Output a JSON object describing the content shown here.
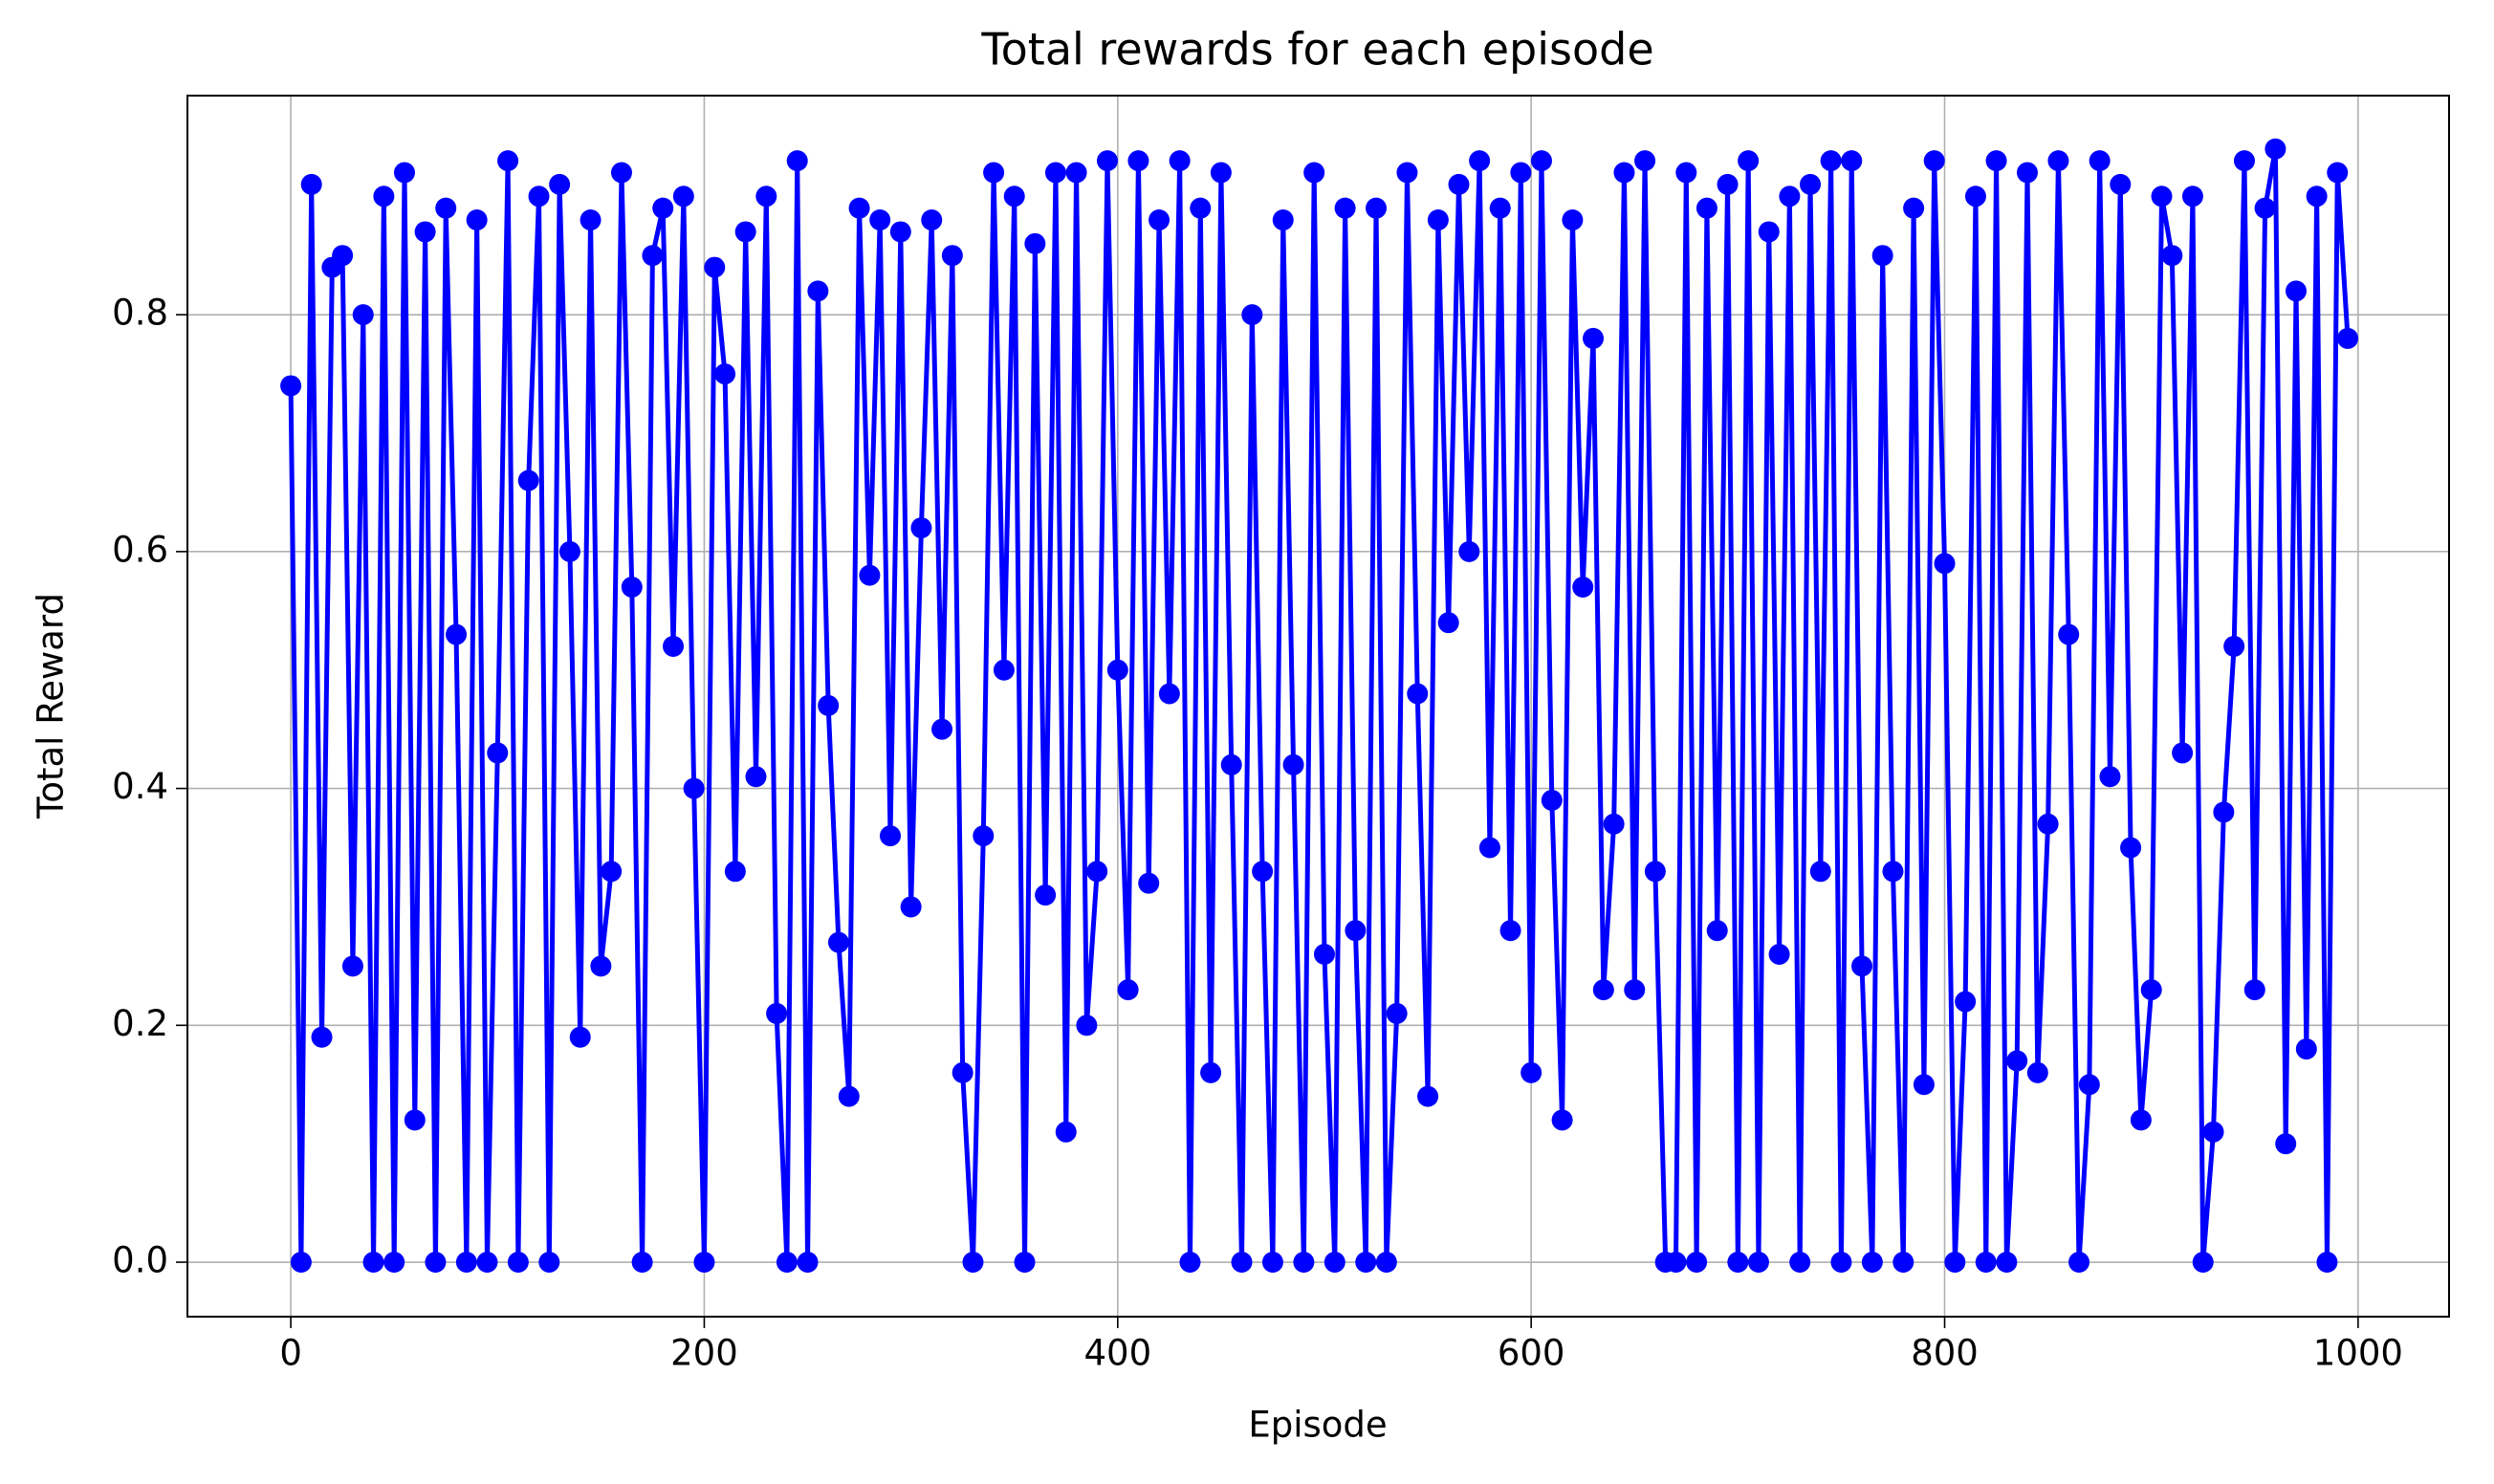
{
  "chart_data": {
    "type": "line",
    "title": "Total rewards for each episode",
    "x_label": "Episode",
    "y_label": "Total Reward",
    "x": [
      0,
      5,
      10,
      15,
      20,
      25,
      30,
      35,
      40,
      45,
      50,
      55,
      60,
      65,
      70,
      75,
      80,
      85,
      90,
      95,
      100,
      105,
      110,
      115,
      120,
      125,
      130,
      135,
      140,
      145,
      150,
      155,
      160,
      165,
      170,
      175,
      180,
      185,
      190,
      195,
      200,
      205,
      210,
      215,
      220,
      225,
      230,
      235,
      240,
      245,
      250,
      255,
      260,
      265,
      270,
      275,
      280,
      285,
      290,
      295,
      300,
      305,
      310,
      315,
      320,
      325,
      330,
      335,
      340,
      345,
      350,
      355,
      360,
      365,
      370,
      375,
      380,
      385,
      390,
      395,
      400,
      405,
      410,
      415,
      420,
      425,
      430,
      435,
      440,
      445,
      450,
      455,
      460,
      465,
      470,
      475,
      480,
      485,
      490,
      495,
      500,
      505,
      510,
      515,
      520,
      525,
      530,
      535,
      540,
      545,
      550,
      555,
      560,
      565,
      570,
      575,
      580,
      585,
      590,
      595,
      600,
      605,
      610,
      615,
      620,
      625,
      630,
      635,
      640,
      645,
      650,
      655,
      660,
      665,
      670,
      675,
      680,
      685,
      690,
      695,
      700,
      705,
      710,
      715,
      720,
      725,
      730,
      735,
      740,
      745,
      750,
      755,
      760,
      765,
      770,
      775,
      780,
      785,
      790,
      795,
      800,
      805,
      810,
      815,
      820,
      825,
      830,
      835,
      840,
      845,
      850,
      855,
      860,
      865,
      870,
      875,
      880,
      885,
      890,
      895,
      900,
      905,
      910,
      915,
      920,
      925,
      930,
      935,
      940,
      945,
      950,
      955,
      960,
      965,
      970,
      975,
      980,
      985,
      990,
      995
    ],
    "series": [
      {
        "name": "Total Reward",
        "color": "blue",
        "values": [
          0.74,
          0.0,
          0.91,
          0.19,
          0.84,
          0.85,
          0.25,
          0.8,
          0.0,
          0.9,
          0.0,
          0.92,
          0.12,
          0.87,
          0.0,
          0.89,
          0.53,
          0.0,
          0.88,
          0.0,
          0.43,
          0.93,
          0.0,
          0.66,
          0.9,
          0.0,
          0.91,
          0.6,
          0.19,
          0.88,
          0.25,
          0.33,
          0.92,
          0.57,
          0.0,
          0.85,
          0.89,
          0.52,
          0.9,
          0.4,
          0.0,
          0.84,
          0.75,
          0.33,
          0.87,
          0.41,
          0.9,
          0.21,
          0.0,
          0.93,
          0.0,
          0.82,
          0.47,
          0.27,
          0.14,
          0.89,
          0.58,
          0.88,
          0.36,
          0.87,
          0.3,
          0.62,
          0.88,
          0.45,
          0.85,
          0.16,
          0.0,
          0.36,
          0.92,
          0.5,
          0.9,
          0.0,
          0.86,
          0.31,
          0.92,
          0.11,
          0.92,
          0.2,
          0.33,
          0.93,
          0.5,
          0.23,
          0.93,
          0.32,
          0.88,
          0.48,
          0.93,
          0.0,
          0.89,
          0.16,
          0.92,
          0.42,
          0.0,
          0.8,
          0.33,
          0.0,
          0.88,
          0.42,
          0.0,
          0.92,
          0.26,
          0.0,
          0.89,
          0.28,
          0.0,
          0.89,
          0.0,
          0.21,
          0.92,
          0.48,
          0.14,
          0.88,
          0.54,
          0.91,
          0.6,
          0.93,
          0.35,
          0.89,
          0.28,
          0.92,
          0.16,
          0.93,
          0.39,
          0.12,
          0.88,
          0.57,
          0.78,
          0.23,
          0.37,
          0.92,
          0.23,
          0.93,
          0.33,
          0.0,
          0.0,
          0.92,
          0.0,
          0.89,
          0.28,
          0.91,
          0.0,
          0.93,
          0.0,
          0.87,
          0.26,
          0.9,
          0.0,
          0.91,
          0.33,
          0.93,
          0.0,
          0.93,
          0.25,
          0.0,
          0.85,
          0.33,
          0.0,
          0.89,
          0.15,
          0.93,
          0.59,
          0.0,
          0.22,
          0.9,
          0.0,
          0.93,
          0.0,
          0.17,
          0.92,
          0.16,
          0.37,
          0.93,
          0.53,
          0.0,
          0.15,
          0.93,
          0.41,
          0.91,
          0.35,
          0.12,
          0.23,
          0.9,
          0.85,
          0.43,
          0.9,
          0.0,
          0.11,
          0.38,
          0.52,
          0.93,
          0.23,
          0.89,
          0.94,
          0.1,
          0.82,
          0.18,
          0.9,
          0.0,
          0.92,
          0.78
        ]
      }
    ],
    "xlim": [
      -50,
      1044
    ],
    "ylim": [
      -0.046,
      0.985
    ],
    "xticks": [
      0,
      200,
      400,
      600,
      800,
      1000
    ],
    "yticks": [
      {
        "value": 0,
        "label": "0.0"
      },
      0.2,
      0.4,
      0.6,
      0.8
    ],
    "grid": true
  }
}
